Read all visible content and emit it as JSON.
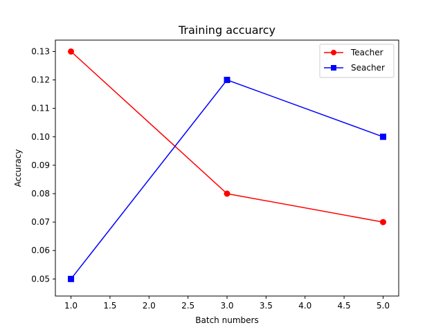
{
  "chart_data": {
    "type": "line",
    "title": "Training accuarcy",
    "xlabel": "Batch numbers",
    "ylabel": "Accuracy",
    "x": [
      1.0,
      3.0,
      5.0
    ],
    "xlim": [
      0.8,
      5.2
    ],
    "ylim": [
      0.044,
      0.134
    ],
    "xticks": [
      1.0,
      1.5,
      2.0,
      2.5,
      3.0,
      3.5,
      4.0,
      4.5,
      5.0
    ],
    "xtick_labels": [
      "1.0",
      "1.5",
      "2.0",
      "2.5",
      "3.0",
      "3.5",
      "4.0",
      "4.5",
      "5.0"
    ],
    "yticks": [
      0.05,
      0.06,
      0.07,
      0.08,
      0.09,
      0.1,
      0.11,
      0.12,
      0.13
    ],
    "ytick_labels": [
      "0.05",
      "0.06",
      "0.07",
      "0.08",
      "0.09",
      "0.10",
      "0.11",
      "0.12",
      "0.13"
    ],
    "grid": false,
    "legend_position": "top-right",
    "series": [
      {
        "name": "Teacher",
        "values": [
          0.13,
          0.08,
          0.07
        ],
        "color": "#ff0000",
        "marker": "circle"
      },
      {
        "name": "Seacher",
        "values": [
          0.05,
          0.12,
          0.1
        ],
        "color": "#0000ff",
        "marker": "square"
      }
    ]
  }
}
